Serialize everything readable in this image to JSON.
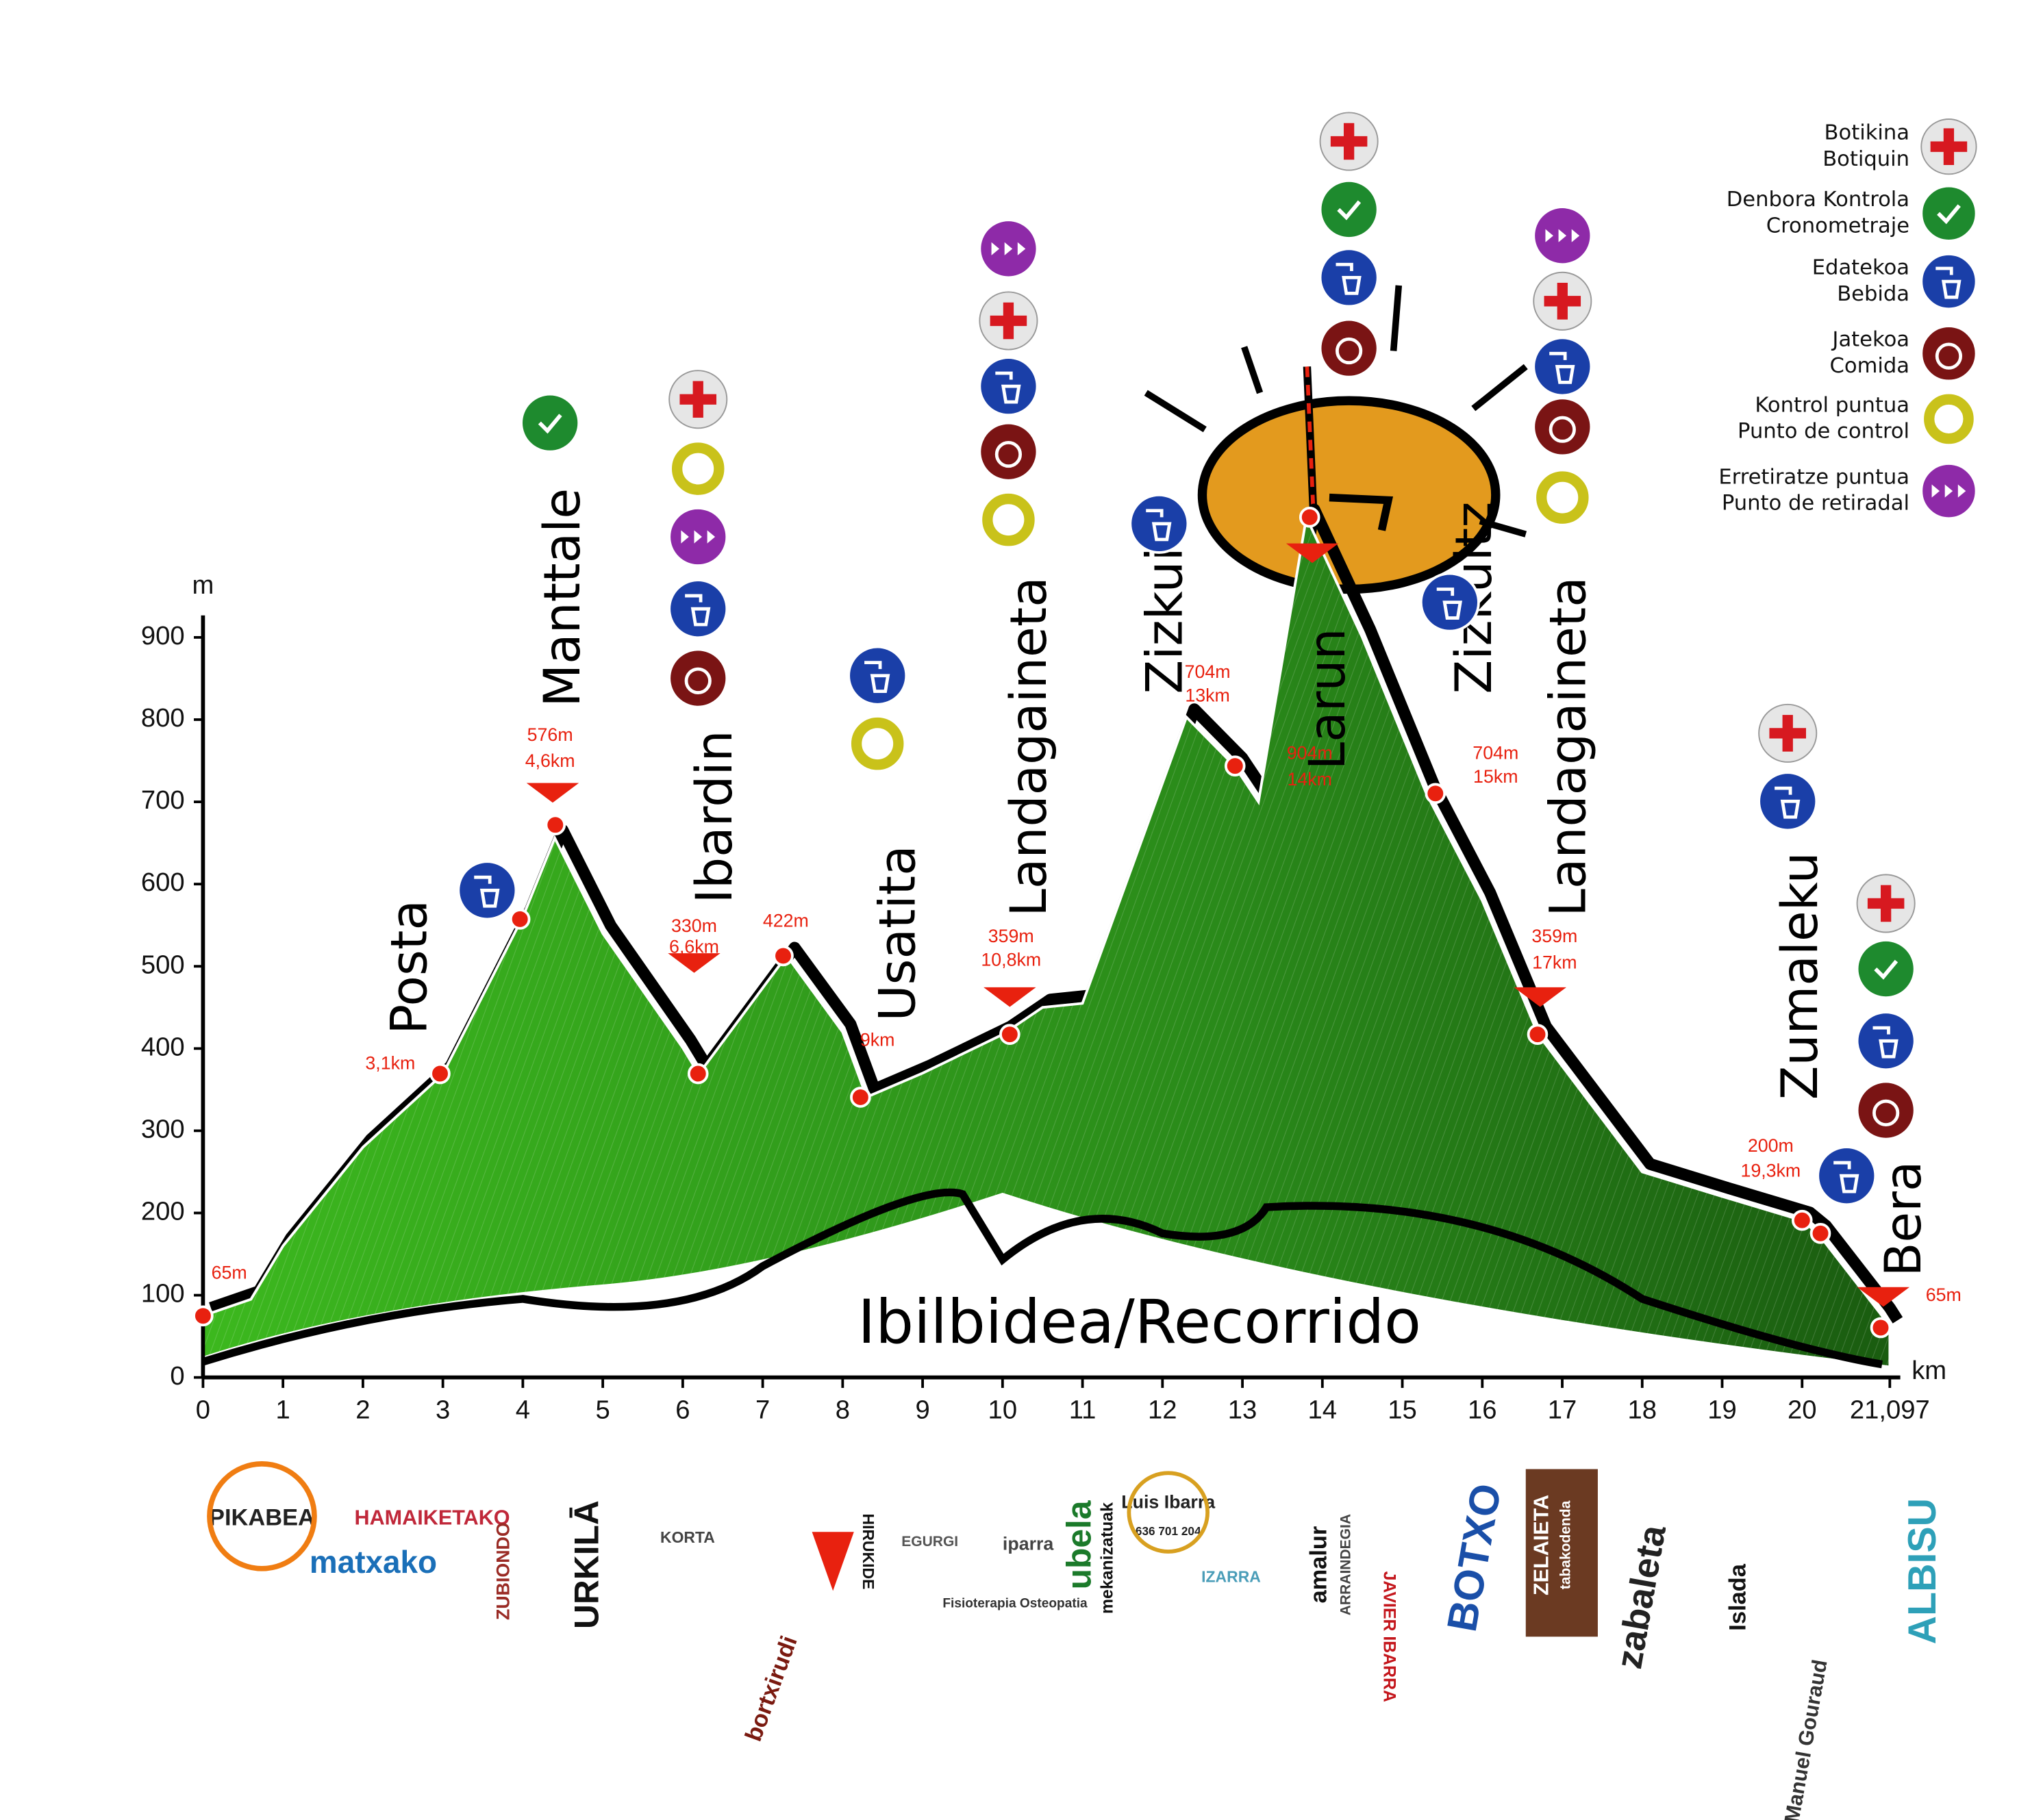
{
  "chart_data": {
    "type": "area",
    "title": "Ibilbidea/Recorrido",
    "y_label": "m",
    "x_label": "km",
    "xlim": [
      0,
      21.097
    ],
    "ylim": [
      0,
      950
    ],
    "xticks": [
      0,
      1,
      2,
      3,
      4,
      5,
      6,
      7,
      8,
      9,
      10,
      11,
      12,
      13,
      14,
      15,
      16,
      17,
      18,
      19,
      20,
      {
        "value": 21.097,
        "label": "21,097"
      }
    ],
    "yticks": [
      0,
      100,
      200,
      300,
      400,
      500,
      600,
      700,
      800,
      900
    ],
    "x": [
      0,
      0.6,
      1,
      2,
      3,
      4,
      4.4,
      5,
      6,
      6.2,
      7.3,
      8,
      8.3,
      9,
      10,
      10.5,
      11,
      12.3,
      12.9,
      13.2,
      13.8,
      14.5,
      15.3,
      16,
      16.7,
      18,
      19,
      20,
      20.2,
      21,
      21.097
    ],
    "values": [
      75,
      95,
      160,
      280,
      369,
      560,
      656,
      540,
      401,
      369,
      513,
      420,
      341,
      370,
      417,
      450,
      455,
      803,
      744,
      700,
      1046,
      900,
      710,
      580,
      417,
      250,
      220,
      191,
      175,
      75,
      60
    ],
    "color": "#2f8f1c",
    "places": [
      "Posta",
      "Manttale",
      "Ibardin",
      "Usatita",
      "Landagaineta",
      "Zizkuitz",
      "Larun",
      "Zizkuitz",
      "Landagaineta",
      "Zumaleku",
      "Bera"
    ],
    "annotations": [
      "65m",
      "3,1km",
      "576m",
      "4,6km",
      "330m",
      "6,6km",
      "422m",
      "9km",
      "359m",
      "10,8km",
      "704m",
      "13km",
      "904m",
      "14km",
      "704m",
      "15km",
      "359m",
      "17km",
      "200m",
      "19,3km",
      "65m"
    ],
    "legend": [
      {
        "eu": "Botikina",
        "es": "Botiquin",
        "color": "#d71920"
      },
      {
        "eu": "Denbora Kontrola",
        "es": "Cronometraje",
        "color": "#1e8a2e"
      },
      {
        "eu": "Edatekoa",
        "es": "Bebida",
        "color": "#1a3fa8"
      },
      {
        "eu": "Jatekoa",
        "es": "Comida",
        "color": "#7a1414"
      },
      {
        "eu": "Kontrol puntua",
        "es": "Punto de control",
        "color": "#c9c21a"
      },
      {
        "eu": "Erretiratze puntua",
        "es": "Punto de retiradal",
        "color": "#8e2aa8"
      }
    ]
  },
  "sponsors": [
    "PIKABEA",
    "matxako",
    "HAMAIKETAKO",
    "ZUBIONDO",
    "URKILĀ",
    "KORTA",
    "bortxirudi",
    "HIRUKIDE",
    "EGURGI",
    "iparra",
    "Fisioterapia Osteopatia",
    "ubela",
    "mekanizatuak",
    "Luis Ibarra",
    "636 701 204",
    "IZARRA",
    "amalur",
    "ARRAINDEGIA",
    "JAVIER IBARRA",
    "BOTXO",
    "ZELAIETA",
    "tabakodenda",
    "zabaleta",
    "Islada",
    "Manuel Gouraud",
    "ALBISU"
  ]
}
